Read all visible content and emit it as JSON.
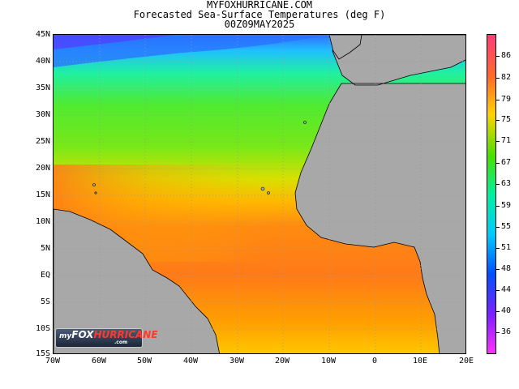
{
  "header": {
    "site": "MYFOXHURRICANE.COM",
    "title": "Forecasted Sea-Surface Temperatures (deg F)",
    "timestamp": "00Z09MAY2025"
  },
  "map": {
    "region": "Tropical Atlantic Ocean",
    "lat_labels": [
      "45N",
      "40N",
      "35N",
      "30N",
      "25N",
      "20N",
      "15N",
      "10N",
      "5N",
      "EQ",
      "5S",
      "10S",
      "15S"
    ],
    "lon_labels": [
      "70W",
      "60W",
      "50W",
      "40W",
      "30W",
      "20W",
      "10W",
      "0",
      "10E",
      "20E"
    ],
    "land_color": "#a8a8a8",
    "gridline_style": "dotted"
  },
  "colorbar": {
    "unit": "deg F",
    "labels": [
      "86",
      "82",
      "79",
      "75",
      "71",
      "67",
      "63",
      "59",
      "55",
      "51",
      "48",
      "44",
      "40",
      "36"
    ],
    "colors": [
      "#ff3c7a",
      "#ff6a2a",
      "#ffd200",
      "#48e000",
      "#00f0a0",
      "#00c8ff",
      "#0050ff",
      "#8020ff",
      "#ff30ff"
    ]
  },
  "logo": {
    "my": "my",
    "fox": "FOX",
    "hurricane": "HURRICANE",
    "com": ".com"
  }
}
